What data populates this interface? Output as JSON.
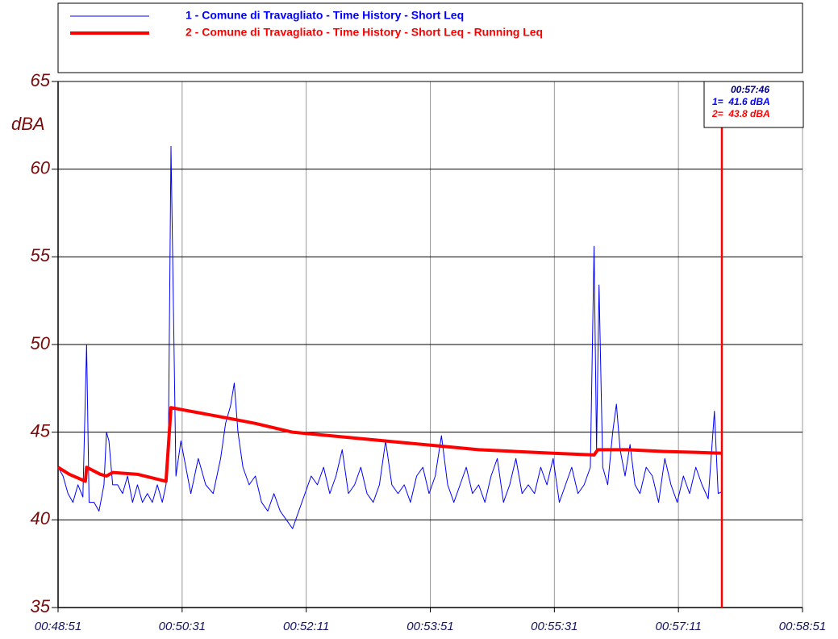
{
  "chart_data": {
    "type": "line",
    "ylabel": "dBA",
    "xlim": [
      2931,
      3531
    ],
    "xticks": [
      {
        "value": 2931,
        "label": "00:48:51"
      },
      {
        "value": 3031,
        "label": "00:50:31"
      },
      {
        "value": 3131,
        "label": "00:52:11"
      },
      {
        "value": 3231,
        "label": "00:53:51"
      },
      {
        "value": 3331,
        "label": "00:55:31"
      },
      {
        "value": 3431,
        "label": "00:57:11"
      },
      {
        "value": 3531,
        "label": "00:58:51"
      }
    ],
    "ylim": [
      35,
      65
    ],
    "yticks": [
      35,
      40,
      45,
      50,
      55,
      60,
      65
    ],
    "grid": true,
    "series": [
      {
        "name": "1 - Comune di Travagliato - Time History - Short Leq",
        "color": "#0000ff",
        "x": [
          2931,
          2935,
          2939,
          2943,
          2947,
          2951,
          2954,
          2956,
          2960,
          2964,
          2968,
          2970,
          2972,
          2975,
          2979,
          2983,
          2987,
          2991,
          2995,
          2999,
          3003,
          3007,
          3011,
          3015,
          3018,
          3020,
          3022,
          3024,
          3026,
          3030,
          3034,
          3038,
          3044,
          3050,
          3056,
          3062,
          3066,
          3070,
          3073,
          3076,
          3080,
          3085,
          3090,
          3095,
          3100,
          3105,
          3110,
          3115,
          3120,
          3125,
          3130,
          3135,
          3140,
          3145,
          3150,
          3155,
          3160,
          3165,
          3170,
          3175,
          3180,
          3185,
          3190,
          3195,
          3200,
          3205,
          3210,
          3215,
          3220,
          3225,
          3230,
          3235,
          3240,
          3245,
          3250,
          3255,
          3260,
          3265,
          3270,
          3275,
          3280,
          3285,
          3290,
          3295,
          3300,
          3305,
          3310,
          3315,
          3320,
          3325,
          3330,
          3335,
          3340,
          3345,
          3350,
          3355,
          3360,
          3363,
          3365,
          3367,
          3370,
          3374,
          3378,
          3381,
          3384,
          3388,
          3392,
          3396,
          3400,
          3405,
          3410,
          3415,
          3420,
          3425,
          3430,
          3435,
          3440,
          3445,
          3450,
          3455,
          3460,
          3463,
          3466
        ],
        "values": [
          43,
          42.5,
          41.5,
          41,
          42,
          41.3,
          50,
          41,
          41,
          40.5,
          42,
          45,
          44.5,
          42,
          42,
          41.5,
          42.5,
          41,
          42,
          41,
          41.5,
          41,
          42,
          41,
          42,
          45,
          61.3,
          52,
          42.5,
          44.5,
          43,
          41.5,
          43.5,
          42,
          41.5,
          43.5,
          45.5,
          46.5,
          47.8,
          45,
          43,
          42,
          42.5,
          41,
          40.5,
          41.5,
          40.5,
          40,
          39.5,
          40.5,
          41.5,
          42.5,
          42,
          43,
          41.5,
          42.5,
          44,
          41.5,
          42,
          43,
          41.5,
          41,
          42,
          44.5,
          42,
          41.5,
          42,
          41,
          42.5,
          43,
          41.5,
          42.5,
          44.8,
          42,
          41,
          42,
          43,
          41.5,
          42,
          41,
          42.5,
          43.5,
          41,
          42,
          43.5,
          41.5,
          42,
          41.5,
          43,
          42,
          43.5,
          41,
          42,
          43,
          41.5,
          42,
          43,
          55.6,
          44,
          53.4,
          43,
          42,
          45,
          46.6,
          44,
          42.5,
          44.3,
          42,
          41.5,
          43,
          42.5,
          41,
          43.5,
          42,
          41,
          42.5,
          41.5,
          43,
          42,
          41.2,
          46.2,
          41.5,
          41.6
        ]
      },
      {
        "name": "2 - Comune di Travagliato - Time History - Short Leq - Running Leq",
        "color": "#ff0000",
        "x": [
          2931,
          2940,
          2953,
          2954,
          2965,
          2970,
          2975,
          2995,
          3018,
          3022,
          3045,
          3068,
          3090,
          3120,
          3150,
          3180,
          3210,
          3240,
          3270,
          3300,
          3330,
          3363,
          3366,
          3390,
          3420,
          3445,
          3466
        ],
        "values": [
          43,
          42.6,
          42.2,
          43,
          42.6,
          42.5,
          42.7,
          42.6,
          42.2,
          46.4,
          46.1,
          45.8,
          45.5,
          45.0,
          44.8,
          44.6,
          44.4,
          44.2,
          44.0,
          43.9,
          43.8,
          43.7,
          44.0,
          44.0,
          43.9,
          43.85,
          43.8
        ]
      }
    ],
    "cursor": {
      "x": 3466,
      "label": "00:57:46",
      "color": "#ff0000",
      "readouts": [
        "1=  41.6 dBA",
        "2=  43.8 dBA"
      ]
    }
  }
}
